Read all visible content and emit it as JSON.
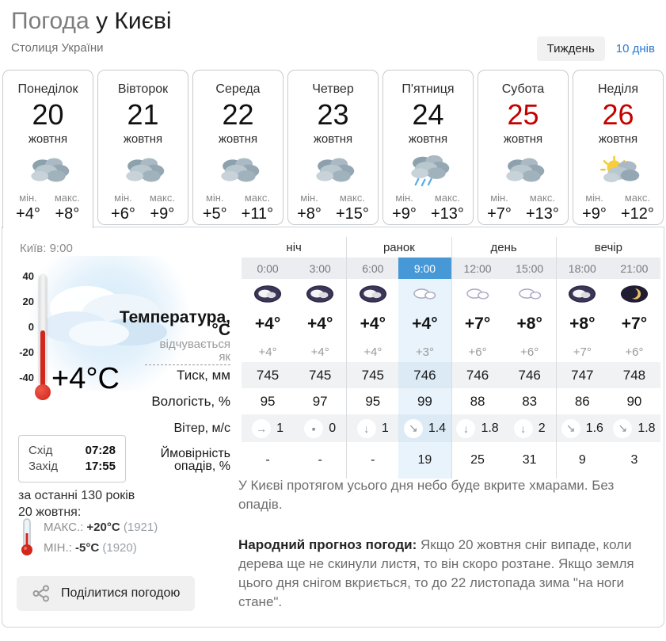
{
  "colors": {
    "accent_blue": "#4798d7",
    "weekend_red": "#c40000",
    "highlight_col": "#e9f3fb",
    "link_blue": "#2b7bd4"
  },
  "header": {
    "title_gray": "Погода",
    "title_dark": "у Києві",
    "subtitle": "Столиця України",
    "week_button": "Тиждень",
    "ten_days_link": "10 днів"
  },
  "tabs": [
    {
      "day": "Понеділок",
      "date": "20",
      "month": "жовтня",
      "icon": "overcast",
      "min_label": "мін.",
      "max_label": "макс.",
      "min": "+4°",
      "max": "+8°",
      "active": true,
      "weekend": false
    },
    {
      "day": "Вівторок",
      "date": "21",
      "month": "жовтня",
      "icon": "overcast",
      "min_label": "мін.",
      "max_label": "макс.",
      "min": "+6°",
      "max": "+9°",
      "active": false,
      "weekend": false
    },
    {
      "day": "Середа",
      "date": "22",
      "month": "жовтня",
      "icon": "overcast",
      "min_label": "мін.",
      "max_label": "макс.",
      "min": "+5°",
      "max": "+11°",
      "active": false,
      "weekend": false
    },
    {
      "day": "Четвер",
      "date": "23",
      "month": "жовтня",
      "icon": "overcast",
      "min_label": "мін.",
      "max_label": "макс.",
      "min": "+8°",
      "max": "+15°",
      "active": false,
      "weekend": false
    },
    {
      "day": "П'ятниця",
      "date": "24",
      "month": "жовтня",
      "icon": "rain",
      "min_label": "мін.",
      "max_label": "макс.",
      "min": "+9°",
      "max": "+13°",
      "active": false,
      "weekend": false
    },
    {
      "day": "Субота",
      "date": "25",
      "month": "жовтня",
      "icon": "overcast",
      "min_label": "мін.",
      "max_label": "макс.",
      "min": "+7°",
      "max": "+13°",
      "active": false,
      "weekend": true
    },
    {
      "day": "Неділя",
      "date": "26",
      "month": "жовтня",
      "icon": "partly-sunny",
      "min_label": "мін.",
      "max_label": "макс.",
      "min": "+9°",
      "max": "+12°",
      "active": false,
      "weekend": true
    }
  ],
  "panel": {
    "location_time": "Київ: 9:00",
    "current_temp": "+4°C",
    "thermo_scale": [
      "40",
      "20",
      "0",
      "-20",
      "-40"
    ],
    "sun": {
      "rise_label": "Схід",
      "rise_time": "07:28",
      "set_label": "Захід",
      "set_time": "17:55"
    },
    "records": {
      "heading_line1": "за останні 130 років",
      "heading_line2": "20 жовтня:",
      "max_label": "МАКС.:",
      "max_value": "+20°C",
      "max_year": "(1921)",
      "min_label": "МІН.:",
      "min_value": "-5°C",
      "min_year": "(1920)"
    },
    "share_button": "Поділитися погодою"
  },
  "forecast_table": {
    "periods": [
      "ніч",
      "ранок",
      "день",
      "вечір"
    ],
    "times": [
      "0:00",
      "3:00",
      "6:00",
      "9:00",
      "12:00",
      "15:00",
      "18:00",
      "21:00"
    ],
    "active_time_index": 3,
    "icons": [
      "night-cloud",
      "night-cloud",
      "night-cloud",
      "day-cloud",
      "day-cloud",
      "day-cloud",
      "night-cloud",
      "moon"
    ],
    "rows": {
      "temperature": {
        "label": "Температура, °C",
        "values": [
          "+4°",
          "+4°",
          "+4°",
          "+4°",
          "+7°",
          "+8°",
          "+8°",
          "+7°"
        ]
      },
      "feels_like": {
        "label": "відчувається як",
        "values": [
          "+4°",
          "+4°",
          "+4°",
          "+3°",
          "+6°",
          "+6°",
          "+7°",
          "+6°"
        ]
      },
      "pressure": {
        "label": "Тиск, мм",
        "values": [
          "745",
          "745",
          "745",
          "746",
          "746",
          "746",
          "747",
          "748"
        ]
      },
      "humidity": {
        "label": "Вологість, %",
        "values": [
          "95",
          "97",
          "95",
          "99",
          "88",
          "83",
          "86",
          "90"
        ]
      },
      "wind": {
        "label": "Вітер, м/с",
        "values": [
          {
            "dir": "→",
            "speed": "1"
          },
          {
            "dir": "▪",
            "speed": "0"
          },
          {
            "dir": "↓",
            "speed": "1"
          },
          {
            "dir": "↘",
            "speed": "1.4"
          },
          {
            "dir": "↓",
            "speed": "1.8"
          },
          {
            "dir": "↓",
            "speed": "2"
          },
          {
            "dir": "↘",
            "speed": "1.6"
          },
          {
            "dir": "↘",
            "speed": "1.8"
          }
        ]
      },
      "precipitation": {
        "label_line1": "Ймовірність",
        "label_line2": "опадів, %",
        "values": [
          "-",
          "-",
          "-",
          "19",
          "25",
          "31",
          "9",
          "3"
        ]
      }
    }
  },
  "summary": {
    "day_text": "У Києві протягом усього дня небо буде вкрите хмарами. Без опадів.",
    "folk_label": "Народний прогноз погоди:",
    "folk_text": " Якщо 20 жовтня сніг випаде, коли дерева ще не скинули листя, то він скоро розтане. Якщо земля цього дня снігом вкриється, то до 22 листопада зима \"на ноги стане\"."
  }
}
